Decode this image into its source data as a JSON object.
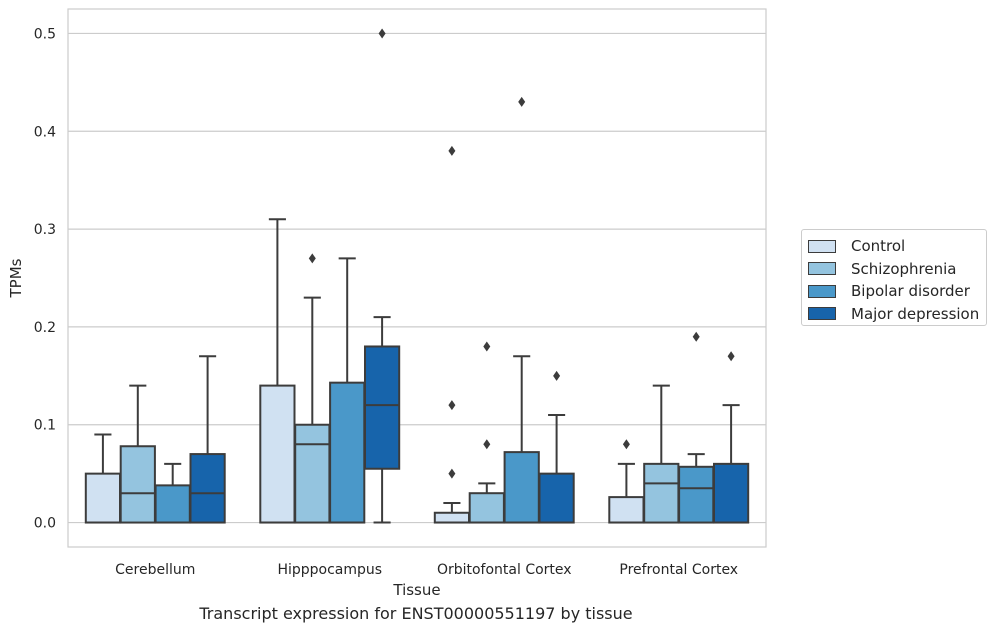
{
  "chart_data": {
    "type": "box",
    "title": "",
    "caption": "Transcript expression for ENST00000551197 by tissue",
    "xlabel": "Tissue",
    "ylabel": "TPMs",
    "ylim": [
      -0.025,
      0.525
    ],
    "yticks": [
      0.0,
      0.1,
      0.2,
      0.3,
      0.4,
      0.5
    ],
    "ytick_labels": [
      "0.0",
      "0.1",
      "0.2",
      "0.3",
      "0.4",
      "0.5"
    ],
    "grid": "horizontal",
    "legend_position": "right",
    "categories": [
      "Cerebellum",
      "Hipppocampus",
      "Orbitofontal Cortex",
      "Prefrontal Cortex"
    ],
    "series": [
      {
        "name": "Control",
        "color": "#d0e1f2",
        "boxes": [
          {
            "min": 0.0,
            "q1": 0.0,
            "median": 0.0,
            "q3": 0.05,
            "max": 0.09,
            "outliers": []
          },
          {
            "min": 0.0,
            "q1": 0.0,
            "median": 0.0,
            "q3": 0.14,
            "max": 0.31,
            "outliers": []
          },
          {
            "min": 0.0,
            "q1": 0.0,
            "median": 0.0,
            "q3": 0.01,
            "max": 0.02,
            "outliers": [
              0.05,
              0.12,
              0.38
            ]
          },
          {
            "min": 0.0,
            "q1": 0.0,
            "median": 0.0,
            "q3": 0.026,
            "max": 0.06,
            "outliers": [
              0.08
            ]
          }
        ]
      },
      {
        "name": "Schizophrenia",
        "color": "#94c4df",
        "boxes": [
          {
            "min": 0.0,
            "q1": 0.0,
            "median": 0.03,
            "q3": 0.078,
            "max": 0.14,
            "outliers": []
          },
          {
            "min": 0.0,
            "q1": 0.0,
            "median": 0.08,
            "q3": 0.1,
            "max": 0.23,
            "outliers": [
              0.27
            ]
          },
          {
            "min": 0.0,
            "q1": 0.0,
            "median": 0.0,
            "q3": 0.03,
            "max": 0.04,
            "outliers": [
              0.08,
              0.18
            ]
          },
          {
            "min": 0.0,
            "q1": 0.0,
            "median": 0.04,
            "q3": 0.06,
            "max": 0.14,
            "outliers": []
          }
        ]
      },
      {
        "name": "Bipolar disorder",
        "color": "#4a98c9",
        "boxes": [
          {
            "min": 0.0,
            "q1": 0.0,
            "median": 0.0,
            "q3": 0.038,
            "max": 0.06,
            "outliers": []
          },
          {
            "min": 0.0,
            "q1": 0.0,
            "median": 0.0,
            "q3": 0.143,
            "max": 0.27,
            "outliers": []
          },
          {
            "min": 0.0,
            "q1": 0.0,
            "median": 0.0,
            "q3": 0.072,
            "max": 0.17,
            "outliers": [
              0.43
            ]
          },
          {
            "min": 0.0,
            "q1": 0.0,
            "median": 0.035,
            "q3": 0.057,
            "max": 0.07,
            "outliers": [
              0.19
            ]
          }
        ]
      },
      {
        "name": "Major depression",
        "color": "#1764ab",
        "boxes": [
          {
            "min": 0.0,
            "q1": 0.0,
            "median": 0.03,
            "q3": 0.07,
            "max": 0.17,
            "outliers": []
          },
          {
            "min": 0.0,
            "q1": 0.055,
            "median": 0.12,
            "q3": 0.18,
            "max": 0.21,
            "outliers": [
              0.5
            ]
          },
          {
            "min": 0.0,
            "q1": 0.0,
            "median": 0.0,
            "q3": 0.05,
            "max": 0.11,
            "outliers": [
              0.15
            ]
          },
          {
            "min": 0.0,
            "q1": 0.0,
            "median": 0.0,
            "q3": 0.06,
            "max": 0.12,
            "outliers": [
              0.17
            ]
          }
        ]
      }
    ]
  }
}
